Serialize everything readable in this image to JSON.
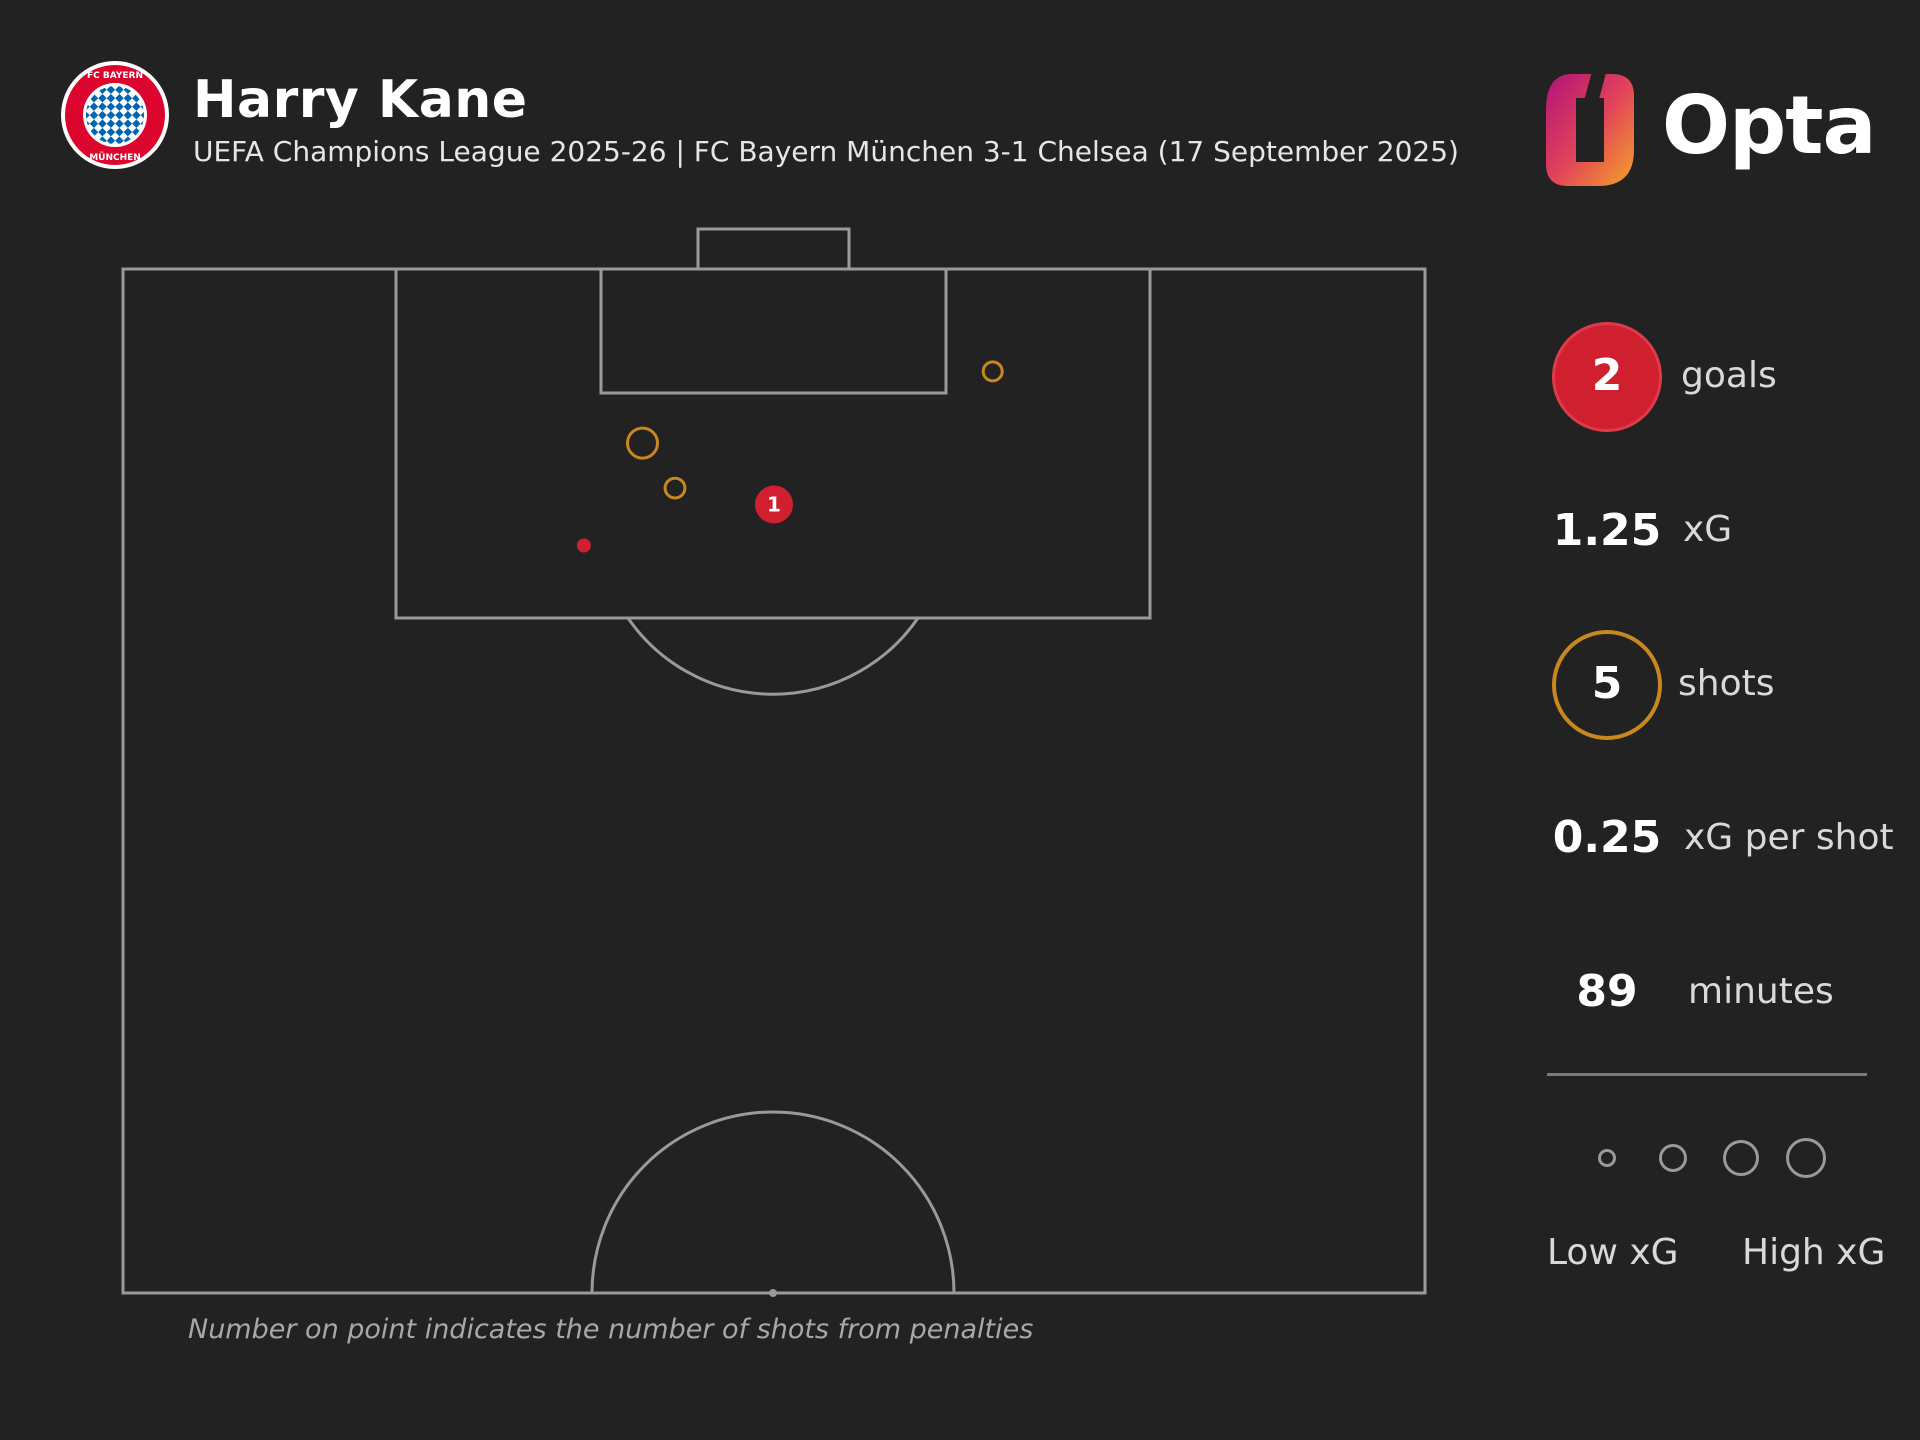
{
  "header": {
    "player_name": "Harry Kane",
    "match_info": "UEFA Champions League 2025-26 | FC Bayern München 3-1 Chelsea (17 September 2025)",
    "crest_text": "FC BAYERN MÜNCHEN",
    "brand": "Opta"
  },
  "colors": {
    "background": "#222222",
    "pitch_lines": "#9a9a9a",
    "goal": "#d0202f",
    "shot": "#c8871f",
    "text": "#ffffff"
  },
  "stats": {
    "goals": {
      "value": "2",
      "label": "goals"
    },
    "xg": {
      "value": "1.25",
      "label": "xG"
    },
    "shots": {
      "value": "5",
      "label": "shots"
    },
    "xg_per_shot": {
      "value": "0.25",
      "label": "xG per shot"
    },
    "minutes": {
      "value": "89",
      "label": "minutes"
    }
  },
  "legend": {
    "low_label": "Low xG",
    "high_label": "High xG",
    "sizes": [
      0.05,
      0.15,
      0.3,
      0.5
    ]
  },
  "footnote": "Number on point indicates the number of shots from penalties",
  "chart_data": {
    "type": "scatter",
    "pitch": "half-pitch, attacking upward",
    "coordinate_system": "Opta: x = distance up the pitch (0-100, 100 = goal line), y = width (0-100, 50 = centre)",
    "shots": [
      {
        "x": 88.5,
        "y": 50,
        "outcome": "goal",
        "penalty_count": 1,
        "xg": 0.79
      },
      {
        "x": 86.5,
        "y": 64.6,
        "outcome": "goal",
        "penalty_count": 0,
        "xg": 0.1
      },
      {
        "x": 91.5,
        "y": 60.1,
        "outcome": "shot",
        "penalty_count": 0,
        "xg": 0.25
      },
      {
        "x": 89.3,
        "y": 57.6,
        "outcome": "shot",
        "penalty_count": 0,
        "xg": 0.06
      },
      {
        "x": 95.0,
        "y": 33.2,
        "outcome": "shot",
        "penalty_count": 0,
        "xg": 0.05
      }
    ]
  }
}
